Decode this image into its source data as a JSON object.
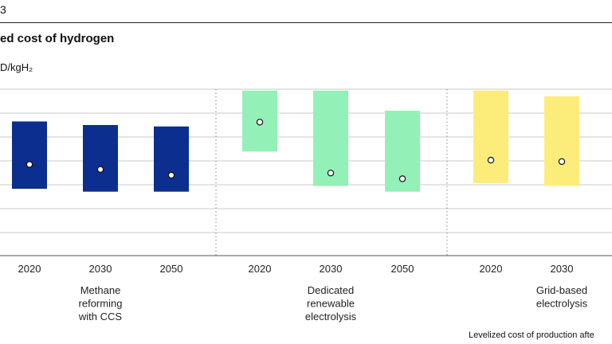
{
  "header": {
    "exhibit": "3",
    "title": "ed cost of hydrogen",
    "unit": "D/kgH₂"
  },
  "footnote": "Levelized cost of production afte",
  "colors": {
    "methane": "#0c2f8f",
    "renewable": "#93f0b6",
    "grid": "#fcec7a",
    "grid_lines": "#c8c8c8",
    "axis": "#555555"
  },
  "chart_data": {
    "type": "bar",
    "chart_kind": "floating range bars with midpoint markers",
    "grid": true,
    "y_gridlines": 7,
    "categories": [
      "2020",
      "2030",
      "2050",
      "2020",
      "2030",
      "2050",
      "2020",
      "2030"
    ],
    "groups": [
      {
        "label": [
          "Methane",
          "reforming",
          "with CCS"
        ],
        "color_key": "methane",
        "bars": [
          {
            "x": "2020",
            "low": 0.61,
            "high": 1.55,
            "marker": 0.95
          },
          {
            "x": "2030",
            "low": 0.57,
            "high": 1.5,
            "marker": 0.88
          },
          {
            "x": "2050",
            "low": 0.57,
            "high": 1.48,
            "marker": 0.8
          }
        ]
      },
      {
        "label": [
          "Dedicated",
          "renewable",
          "electrolysis"
        ],
        "color_key": "renewable",
        "bars": [
          {
            "x": "2020",
            "low": 1.13,
            "high": 1.98,
            "marker": 1.54
          },
          {
            "x": "2030",
            "low": 0.65,
            "high": 1.98,
            "marker": 0.83
          },
          {
            "x": "2050",
            "low": 0.57,
            "high": 1.7,
            "marker": 0.75
          }
        ]
      },
      {
        "label": [
          "Grid-based",
          "electrolysis"
        ],
        "color_key": "grid",
        "bars": [
          {
            "x": "2020",
            "low": 0.69,
            "high": 1.98,
            "marker": 1.01
          },
          {
            "x": "2030",
            "low": 0.65,
            "high": 1.9,
            "marker": 0.99
          }
        ]
      }
    ]
  }
}
